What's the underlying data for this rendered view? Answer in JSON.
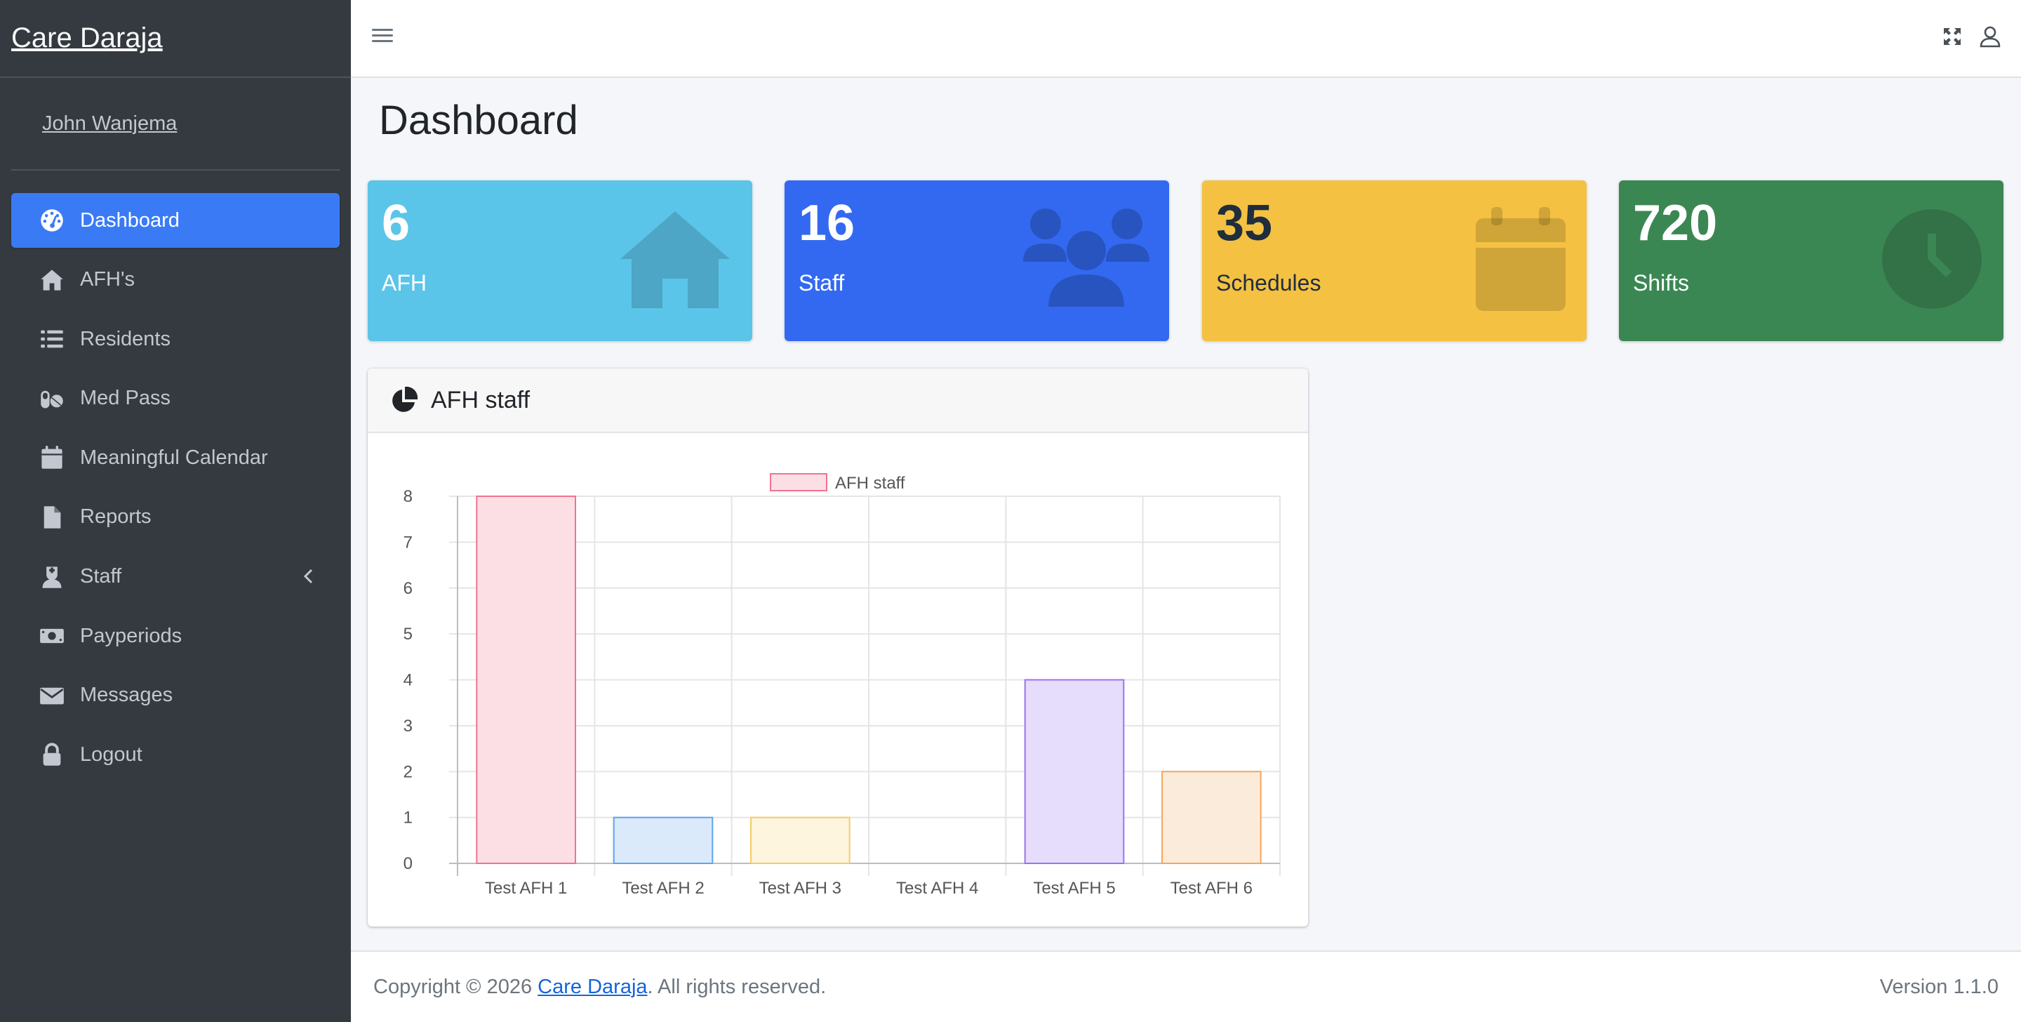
{
  "brand": {
    "name": "Care Daraja"
  },
  "user": {
    "name": "John Wanjema"
  },
  "sidebar": {
    "items": [
      {
        "label": "Dashboard",
        "icon": "tachometer-icon",
        "active": true
      },
      {
        "label": "AFH's",
        "icon": "home-icon"
      },
      {
        "label": "Residents",
        "icon": "list-icon"
      },
      {
        "label": "Med Pass",
        "icon": "pills-icon"
      },
      {
        "label": "Meaningful Calendar",
        "icon": "calendar-icon"
      },
      {
        "label": "Reports",
        "icon": "file-icon"
      },
      {
        "label": "Staff",
        "icon": "user-nurse-icon",
        "has_submenu": true
      },
      {
        "label": "Payperiods",
        "icon": "money-bill-icon"
      },
      {
        "label": "Messages",
        "icon": "envelope-icon"
      },
      {
        "label": "Logout",
        "icon": "lock-icon"
      }
    ]
  },
  "topbar": {
    "menu_icon": "hamburger-icon",
    "fullscreen_icon": "expand-icon",
    "user_icon": "user-icon"
  },
  "page": {
    "title": "Dashboard"
  },
  "stats": [
    {
      "value": "6",
      "label": "AFH",
      "color": "#5bc4e9",
      "icon": "home-icon"
    },
    {
      "value": "16",
      "label": "Staff",
      "color": "#3369f1",
      "icon": "users-icon"
    },
    {
      "value": "35",
      "label": "Schedules",
      "color": "#f4c142",
      "icon": "calendar-icon"
    },
    {
      "value": "720",
      "label": "Shifts",
      "color": "#3b8753",
      "icon": "clock-icon"
    }
  ],
  "card": {
    "title": "AFH staff",
    "icon": "chart-pie-icon"
  },
  "chart_data": {
    "type": "bar",
    "categories": [
      "Test AFH 1",
      "Test AFH 2",
      "Test AFH 3",
      "Test AFH 4",
      "Test AFH 5",
      "Test AFH 6"
    ],
    "series": [
      {
        "name": "AFH staff",
        "values": [
          8,
          1,
          1,
          0,
          4,
          2
        ]
      }
    ],
    "ylim": [
      0,
      8
    ],
    "yticks": [
      0,
      1,
      2,
      3,
      4,
      5,
      6,
      7,
      8
    ],
    "grid": true,
    "legend": "top",
    "bar_colors": [
      {
        "fill": "#fbdfe5",
        "stroke": "#f27190"
      },
      {
        "fill": "#dbeafb",
        "stroke": "#5ea4ea"
      },
      {
        "fill": "#fdf5dd",
        "stroke": "#f5cc67"
      },
      {
        "fill": "#def3f3",
        "stroke": "#6cc8c8"
      },
      {
        "fill": "#e6dcfc",
        "stroke": "#9a72f0"
      },
      {
        "fill": "#fbebdb",
        "stroke": "#f5a65b"
      }
    ]
  },
  "footer": {
    "prefix": "Copyright © 2026 ",
    "link": "Care Daraja",
    "suffix": ". All rights reserved.",
    "version": "Version 1.1.0"
  }
}
